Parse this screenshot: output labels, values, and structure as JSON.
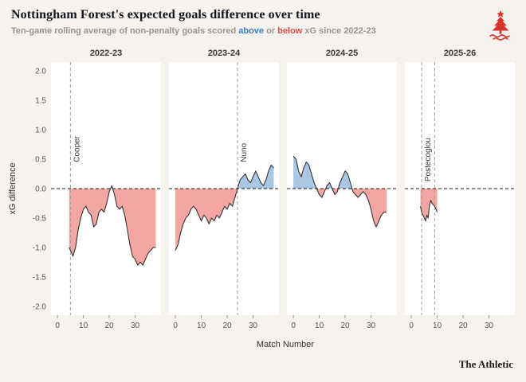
{
  "header": {
    "title": "Nottingham Forest's expected goals difference over time",
    "subtitle_pre": "Ten-game rolling average of non-penalty goals scored ",
    "subtitle_above": "above",
    "subtitle_or": " or ",
    "subtitle_below": "below",
    "subtitle_post": " xG since 2022-23",
    "crest": "nottingham-forest-crest"
  },
  "footer": {
    "brand": "The Athletic"
  },
  "chart_data": {
    "type": "area",
    "title": "Nottingham Forest's expected goals difference over time",
    "xlabel": "Match Number",
    "ylabel": "xG difference",
    "ylim": [
      -2.15,
      2.15
    ],
    "yticks": [
      2.0,
      1.5,
      1.0,
      0.5,
      0.0,
      -0.5,
      -1.0,
      -1.5,
      -2.0
    ],
    "xlim": [
      -2.5,
      40
    ],
    "xticks": [
      0,
      10,
      20,
      30
    ],
    "legend": "fill above zero = blue (scoring above xG), fill below zero = red (scoring below xG)",
    "colors": {
      "above": "#a9c6e2",
      "below": "#f4a6a3",
      "line": "#333333",
      "zero_line": "#1a1a1a",
      "manager_line": "#9b9b9b",
      "panel_bg": "#ffffff",
      "accent_blue": "#3d7cc0",
      "accent_red": "#e04848"
    },
    "panels": [
      {
        "season": "2022-23",
        "manager_lines": [
          {
            "x": 5,
            "label": "Cooper",
            "label_y": 0.45
          }
        ],
        "points": [
          [
            4.5,
            -1.0
          ],
          [
            5,
            -1.05
          ],
          [
            6,
            -1.15
          ],
          [
            7,
            -1.0
          ],
          [
            8,
            -0.7
          ],
          [
            9,
            -0.5
          ],
          [
            10,
            -0.35
          ],
          [
            11,
            -0.3
          ],
          [
            12,
            -0.4
          ],
          [
            13,
            -0.45
          ],
          [
            14,
            -0.65
          ],
          [
            15,
            -0.6
          ],
          [
            16,
            -0.4
          ],
          [
            17,
            -0.35
          ],
          [
            18,
            -0.4
          ],
          [
            19,
            -0.25
          ],
          [
            20,
            -0.05
          ],
          [
            21,
            0.05
          ],
          [
            22,
            -0.1
          ],
          [
            23,
            -0.3
          ],
          [
            24,
            -0.35
          ],
          [
            25,
            -0.3
          ],
          [
            26,
            -0.45
          ],
          [
            27,
            -0.7
          ],
          [
            28,
            -0.95
          ],
          [
            29,
            -1.15
          ],
          [
            30,
            -1.2
          ],
          [
            31,
            -1.3
          ],
          [
            32,
            -1.25
          ],
          [
            33,
            -1.3
          ],
          [
            34,
            -1.2
          ],
          [
            35,
            -1.1
          ],
          [
            36,
            -1.05
          ],
          [
            37,
            -1.0
          ],
          [
            38,
            -1.0
          ]
        ]
      },
      {
        "season": "2023-24",
        "manager_lines": [
          {
            "x": 24,
            "label": "Nuno",
            "label_y": 0.45
          }
        ],
        "points": [
          [
            0,
            -1.05
          ],
          [
            1,
            -0.95
          ],
          [
            2,
            -0.75
          ],
          [
            3,
            -0.6
          ],
          [
            4,
            -0.5
          ],
          [
            5,
            -0.45
          ],
          [
            6,
            -0.35
          ],
          [
            7,
            -0.3
          ],
          [
            8,
            -0.35
          ],
          [
            9,
            -0.45
          ],
          [
            10,
            -0.55
          ],
          [
            11,
            -0.45
          ],
          [
            12,
            -0.5
          ],
          [
            13,
            -0.6
          ],
          [
            14,
            -0.5
          ],
          [
            15,
            -0.55
          ],
          [
            16,
            -0.45
          ],
          [
            17,
            -0.5
          ],
          [
            18,
            -0.4
          ],
          [
            19,
            -0.3
          ],
          [
            20,
            -0.35
          ],
          [
            21,
            -0.25
          ],
          [
            22,
            -0.3
          ],
          [
            23,
            -0.15
          ],
          [
            24,
            0.0
          ],
          [
            25,
            0.15
          ],
          [
            26,
            0.2
          ],
          [
            27,
            0.25
          ],
          [
            28,
            0.15
          ],
          [
            29,
            0.1
          ],
          [
            30,
            0.2
          ],
          [
            31,
            0.3
          ],
          [
            32,
            0.2
          ],
          [
            33,
            0.1
          ],
          [
            34,
            0.05
          ],
          [
            35,
            0.15
          ],
          [
            36,
            0.3
          ],
          [
            37,
            0.4
          ],
          [
            38,
            0.35
          ]
        ]
      },
      {
        "season": "2024-25",
        "manager_lines": [],
        "points": [
          [
            0,
            0.55
          ],
          [
            1,
            0.5
          ],
          [
            2,
            0.3
          ],
          [
            3,
            0.2
          ],
          [
            4,
            0.35
          ],
          [
            5,
            0.45
          ],
          [
            6,
            0.4
          ],
          [
            7,
            0.25
          ],
          [
            8,
            0.1
          ],
          [
            9,
            0.0
          ],
          [
            10,
            -0.1
          ],
          [
            11,
            -0.15
          ],
          [
            12,
            -0.05
          ],
          [
            13,
            0.05
          ],
          [
            14,
            0.1
          ],
          [
            15,
            0.0
          ],
          [
            16,
            -0.1
          ],
          [
            17,
            -0.05
          ],
          [
            18,
            0.1
          ],
          [
            19,
            0.2
          ],
          [
            20,
            0.3
          ],
          [
            21,
            0.25
          ],
          [
            22,
            0.1
          ],
          [
            23,
            -0.05
          ],
          [
            24,
            -0.1
          ],
          [
            25,
            -0.15
          ],
          [
            26,
            -0.1
          ],
          [
            27,
            -0.05
          ],
          [
            28,
            -0.1
          ],
          [
            29,
            -0.2
          ],
          [
            30,
            -0.35
          ],
          [
            31,
            -0.55
          ],
          [
            32,
            -0.65
          ],
          [
            33,
            -0.55
          ],
          [
            34,
            -0.45
          ],
          [
            35,
            -0.4
          ],
          [
            36,
            -0.4
          ]
        ]
      },
      {
        "season": "2025-26",
        "manager_lines": [
          {
            "x": 4,
            "label": "Postecoglou",
            "label_y": 0.12
          },
          {
            "x": 9,
            "label": "",
            "label_y": 0
          }
        ],
        "points": [
          [
            3.5,
            -0.3
          ],
          [
            4,
            -0.4
          ],
          [
            5,
            -0.5
          ],
          [
            5.5,
            -0.55
          ],
          [
            6,
            -0.45
          ],
          [
            6.5,
            -0.5
          ],
          [
            7,
            -0.3
          ],
          [
            7.5,
            -0.2
          ],
          [
            8,
            -0.25
          ],
          [
            9,
            -0.3
          ],
          [
            9.5,
            -0.35
          ],
          [
            10,
            -0.4
          ]
        ]
      }
    ]
  }
}
